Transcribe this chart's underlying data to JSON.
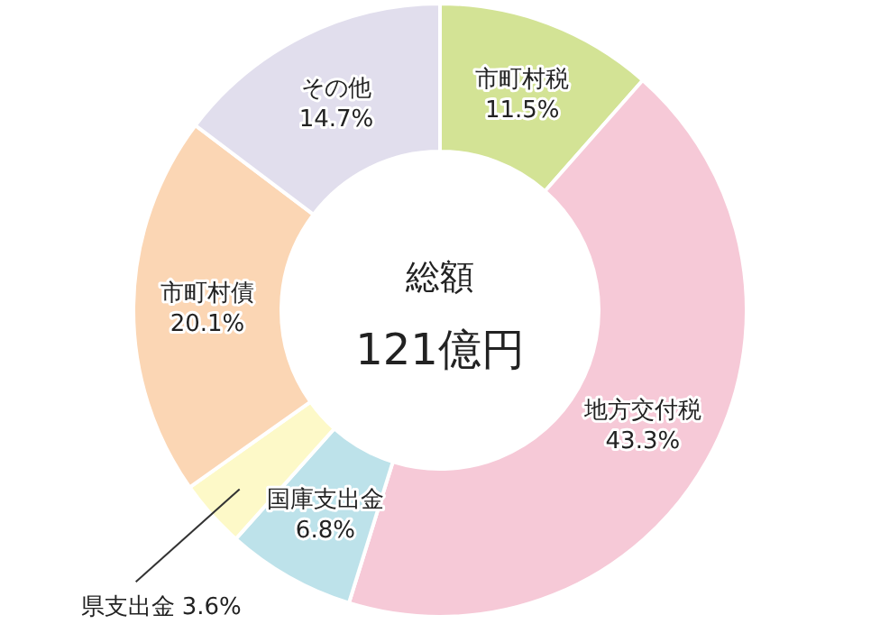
{
  "chart_data": {
    "type": "donut",
    "categories": [
      "市町村税",
      "地方交付税",
      "国庫支出金",
      "県支出金",
      "市町村債",
      "その他"
    ],
    "values": [
      11.5,
      43.3,
      6.8,
      3.6,
      20.1,
      14.7
    ],
    "value_labels": [
      "11.5%",
      "43.3%",
      "6.8%",
      "3.6%",
      "20.1%",
      "14.7%"
    ],
    "colors": [
      "#d3e395",
      "#f6c9d7",
      "#bde2ea",
      "#fdf9c8",
      "#fbd6b4",
      "#e1deed"
    ],
    "annotations": [
      "総額",
      "121億円"
    ]
  }
}
